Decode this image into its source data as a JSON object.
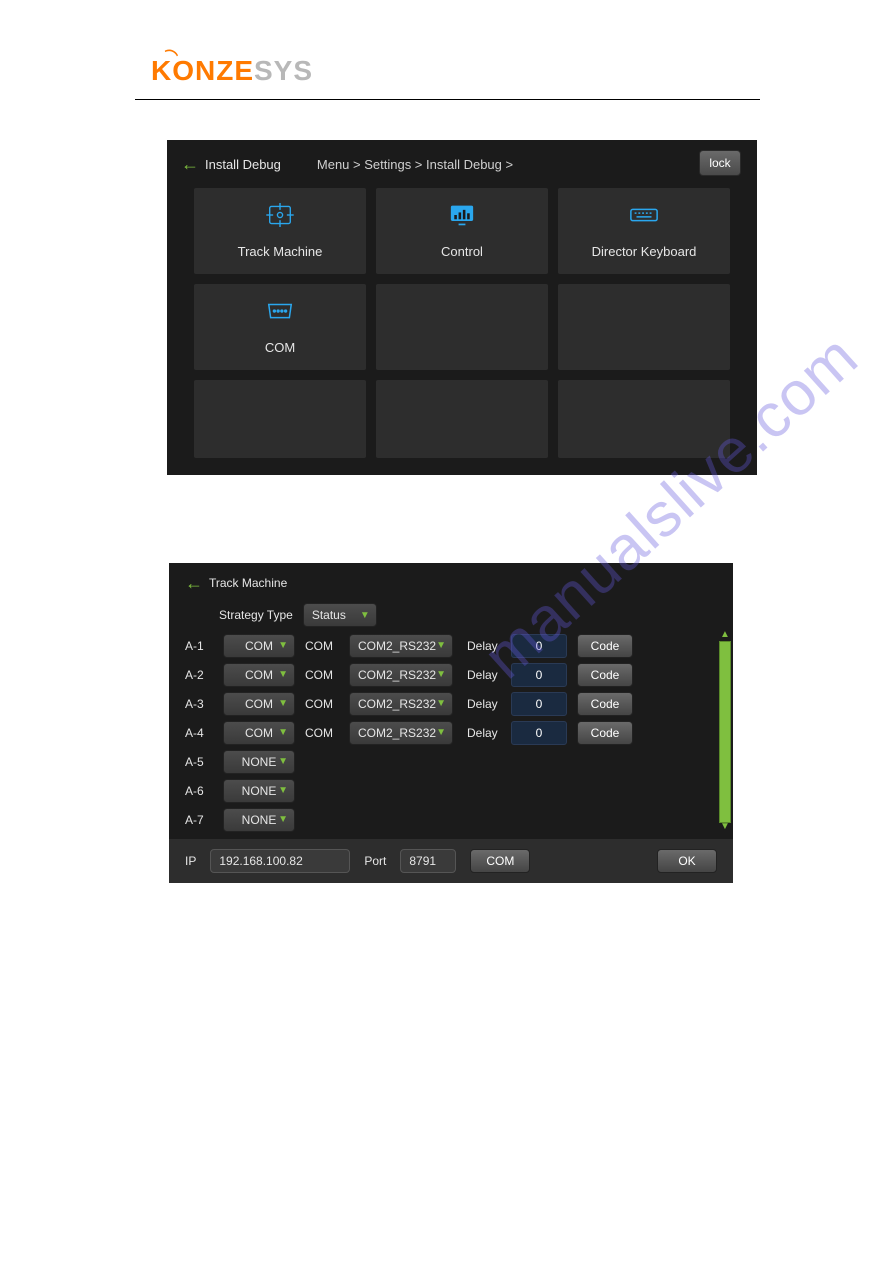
{
  "logo": {
    "part1": "KONZE",
    "part2": "SYS"
  },
  "colors": {
    "accent_orange": "#ff7a00",
    "accent_blue": "#2aa7ee",
    "accent_green": "#7fbf3f",
    "panel_bg": "#1b1b1b",
    "tile_bg": "#2d2d2d",
    "input_bg": "#1a2a40",
    "text": "#e6e6e6"
  },
  "screen1": {
    "back_label": "Install Debug",
    "breadcrumb_items": [
      "Menu",
      "Settings",
      "Install Debug"
    ],
    "breadcrumb_text": "Menu >  Settings >  Install Debug >",
    "lock_label": "lock",
    "tiles": [
      {
        "label": "Track Machine",
        "icon": "crosshair-icon"
      },
      {
        "label": "Control",
        "icon": "monitor-icon"
      },
      {
        "label": "Director Keyboard",
        "icon": "keyboard-icon"
      },
      {
        "label": "COM",
        "icon": "port-icon"
      },
      {
        "label": "",
        "icon": ""
      },
      {
        "label": "",
        "icon": ""
      },
      {
        "label": "",
        "icon": ""
      },
      {
        "label": "",
        "icon": ""
      },
      {
        "label": "",
        "icon": ""
      }
    ]
  },
  "screen2": {
    "back_label": "Track Machine",
    "strategy_label": "Strategy Type",
    "strategy_value": "Status",
    "rows": [
      {
        "id": "A-1",
        "mode": "COM",
        "com_label": "COM",
        "port": "COM2_RS232",
        "delay_label": "Delay",
        "delay": "0",
        "code_label": "Code"
      },
      {
        "id": "A-2",
        "mode": "COM",
        "com_label": "COM",
        "port": "COM2_RS232",
        "delay_label": "Delay",
        "delay": "0",
        "code_label": "Code"
      },
      {
        "id": "A-3",
        "mode": "COM",
        "com_label": "COM",
        "port": "COM2_RS232",
        "delay_label": "Delay",
        "delay": "0",
        "code_label": "Code"
      },
      {
        "id": "A-4",
        "mode": "COM",
        "com_label": "COM",
        "port": "COM2_RS232",
        "delay_label": "Delay",
        "delay": "0",
        "code_label": "Code"
      },
      {
        "id": "A-5",
        "mode": "NONE"
      },
      {
        "id": "A-6",
        "mode": "NONE"
      },
      {
        "id": "A-7",
        "mode": "NONE"
      }
    ],
    "footer": {
      "ip_label": "IP",
      "ip_value": "192.168.100.82",
      "port_label": "Port",
      "port_value": "8791",
      "com_label": "COM",
      "ok_label": "OK"
    }
  },
  "watermark": "manualslive.com"
}
